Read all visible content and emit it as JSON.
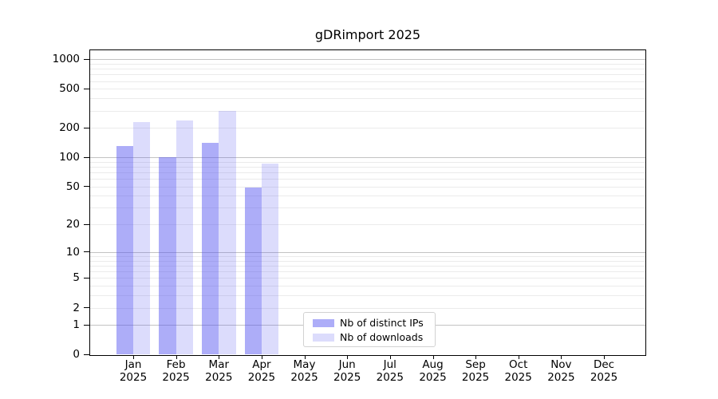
{
  "chart_data": {
    "type": "bar",
    "title": "gDRimport 2025",
    "y_scale": "log-like: position proportional to log10(1 + value), zero at baseline",
    "ylim": [
      0,
      1250
    ],
    "y_ticks": [
      0,
      1,
      2,
      5,
      10,
      20,
      50,
      100,
      200,
      500,
      1000
    ],
    "grid": {
      "horizontal": true,
      "major_at": [
        1,
        10,
        100,
        1000
      ],
      "minor": true
    },
    "categories": [
      "Jan",
      "Feb",
      "Mar",
      "Apr",
      "May",
      "Jun",
      "Jul",
      "Aug",
      "Sep",
      "Oct",
      "Nov",
      "Dec"
    ],
    "category_second_line": "2025",
    "series": [
      {
        "name": "Nb of distinct IPs",
        "color": "#a6a6f9",
        "css_color": "rgba(80,80,240,0.47)",
        "values": [
          130,
          100,
          140,
          49,
          null,
          null,
          null,
          null,
          null,
          null,
          null,
          null
        ]
      },
      {
        "name": "Nb of downloads",
        "color": "#dcdcfb",
        "css_color": "rgba(80,80,240,0.20)",
        "values": [
          228,
          237,
          297,
          86,
          null,
          null,
          null,
          null,
          null,
          null,
          null,
          null
        ]
      }
    ],
    "legend": {
      "position": "inside plot, bottom left-of-center"
    }
  },
  "colors": {
    "plot_border": "#000000",
    "gridline_major": "#c3c3c3",
    "gridline_minor": "#ebebeb",
    "background": "#ffffff",
    "text": "#000000"
  }
}
